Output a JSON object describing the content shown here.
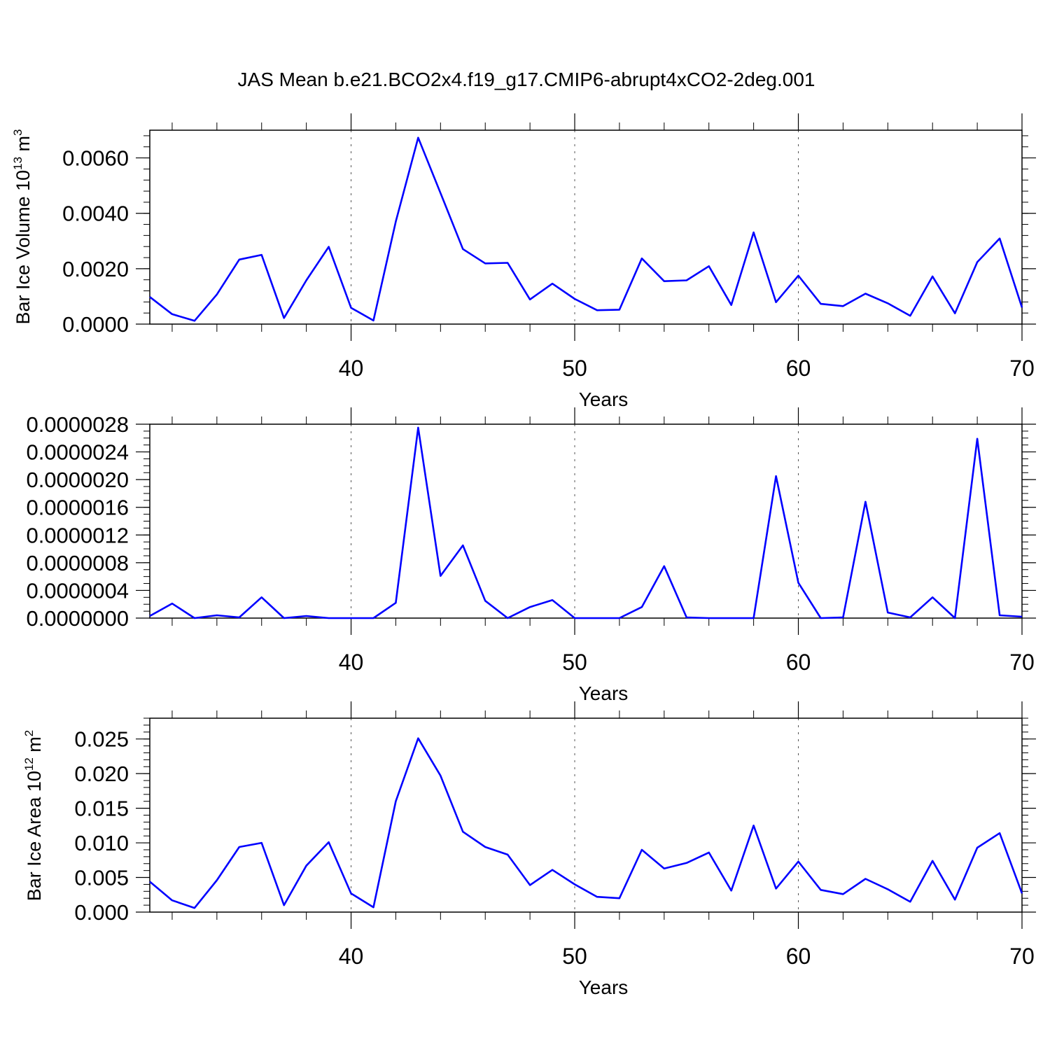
{
  "figure": {
    "title": "JAS Mean b.e21.BCO2x4.f19_g17.CMIP6-abrupt4xCO2-2deg.001"
  },
  "chart_data": [
    {
      "type": "line",
      "title": "JAS Mean b.e21.BCO2x4.f19_g17.CMIP6-abrupt4xCO2-2deg.001",
      "xlabel": "Years",
      "ylabel": {
        "main": "Bar Ice Volume 10",
        "sup": "13",
        "unit": " m",
        "unit_sup": "3"
      },
      "xlim": [
        31,
        70
      ],
      "ylim": [
        0,
        0.007
      ],
      "xticks": [
        40,
        50,
        60,
        70
      ],
      "yticks": [
        0,
        0.002,
        0.004,
        0.006
      ],
      "ytick_labels": [
        "0.0000",
        "0.0020",
        "0.0040",
        "0.0060"
      ],
      "y_minor_step": 0.0004,
      "grid": "dashed vertical at major x ticks",
      "line_color": "#0000ff",
      "x": [
        31,
        32,
        33,
        34,
        35,
        36,
        37,
        38,
        39,
        40,
        41,
        42,
        43,
        44,
        45,
        46,
        47,
        48,
        49,
        50,
        51,
        52,
        53,
        54,
        55,
        56,
        57,
        58,
        59,
        60,
        61,
        62,
        63,
        64,
        65,
        66,
        67,
        68,
        69,
        70
      ],
      "values": [
        0.00098,
        0.00036,
        0.00012,
        0.00107,
        0.00233,
        0.0025,
        0.00022,
        0.00158,
        0.00279,
        0.00059,
        0.00013,
        0.0037,
        0.00673,
        0.00473,
        0.00271,
        0.00219,
        0.00221,
        0.00089,
        0.00146,
        0.00091,
        0.0005,
        0.00052,
        0.00237,
        0.00155,
        0.00158,
        0.00209,
        0.00069,
        0.00331,
        0.00079,
        0.00175,
        0.00073,
        0.00065,
        0.0011,
        0.00075,
        0.0003,
        0.00172,
        0.00039,
        0.00224,
        0.00309,
        0.0006
      ]
    },
    {
      "type": "line",
      "xlabel": "Years",
      "ylabel": null,
      "xlim": [
        31,
        70
      ],
      "ylim": [
        0,
        2.8e-06
      ],
      "xticks": [
        40,
        50,
        60,
        70
      ],
      "yticks": [
        0,
        4e-07,
        8e-07,
        1.2e-06,
        1.6e-06,
        2e-06,
        2.4e-06,
        2.8e-06
      ],
      "ytick_labels": [
        "0.0000000",
        "0.0000004",
        "0.0000008",
        "0.0000012",
        "0.0000016",
        "0.0000020",
        "0.0000024",
        "0.0000028"
      ],
      "y_minor_step": 1e-07,
      "grid": "dashed vertical at major x ticks",
      "line_color": "#0000ff",
      "x": [
        31,
        32,
        33,
        34,
        35,
        36,
        37,
        38,
        39,
        40,
        41,
        42,
        43,
        44,
        45,
        46,
        47,
        48,
        49,
        50,
        51,
        52,
        53,
        54,
        55,
        56,
        57,
        58,
        59,
        60,
        61,
        62,
        63,
        64,
        65,
        66,
        67,
        68,
        69,
        70
      ],
      "values": [
        3e-08,
        2.1e-07,
        0.0,
        4e-08,
        1e-08,
        3e-07,
        0.0,
        3e-08,
        0.0,
        0.0,
        0.0,
        2.2e-07,
        2.75e-06,
        6.1e-07,
        1.05e-06,
        2.5e-07,
        0.0,
        1.6e-07,
        2.6e-07,
        0.0,
        0.0,
        0.0,
        1.6e-07,
        7.5e-07,
        1e-08,
        0.0,
        0.0,
        0.0,
        2.05e-06,
        5.1e-07,
        0.0,
        1e-08,
        1.68e-06,
        8e-08,
        1e-08,
        3e-07,
        0.0,
        2.59e-06,
        4e-08,
        2e-08
      ]
    },
    {
      "type": "line",
      "xlabel": "Years",
      "ylabel": {
        "main": "Bar Ice Area 10",
        "sup": "12",
        "unit": " m",
        "unit_sup": "2"
      },
      "xlim": [
        31,
        70
      ],
      "ylim": [
        0,
        0.028
      ],
      "xticks": [
        40,
        50,
        60,
        70
      ],
      "yticks": [
        0,
        0.005,
        0.01,
        0.015,
        0.02,
        0.025
      ],
      "ytick_labels": [
        "0.000",
        "0.005",
        "0.010",
        "0.015",
        "0.020",
        "0.025"
      ],
      "y_minor_step": 0.001,
      "grid": "dashed vertical at major x ticks",
      "line_color": "#0000ff",
      "x": [
        31,
        32,
        33,
        34,
        35,
        36,
        37,
        38,
        39,
        40,
        41,
        42,
        43,
        44,
        45,
        46,
        47,
        48,
        49,
        50,
        51,
        52,
        53,
        54,
        55,
        56,
        57,
        58,
        59,
        60,
        61,
        62,
        63,
        64,
        65,
        66,
        67,
        68,
        69,
        70
      ],
      "values": [
        0.0044,
        0.0017,
        0.0006,
        0.0046,
        0.0094,
        0.01,
        0.001,
        0.0067,
        0.0101,
        0.0027,
        0.0007,
        0.016,
        0.0251,
        0.0197,
        0.0116,
        0.0094,
        0.0083,
        0.0039,
        0.0061,
        0.004,
        0.0022,
        0.002,
        0.009,
        0.0063,
        0.0071,
        0.0086,
        0.0031,
        0.0125,
        0.0034,
        0.0073,
        0.0032,
        0.0026,
        0.0048,
        0.0033,
        0.0015,
        0.0074,
        0.0018,
        0.0093,
        0.0114,
        0.0027
      ]
    }
  ]
}
